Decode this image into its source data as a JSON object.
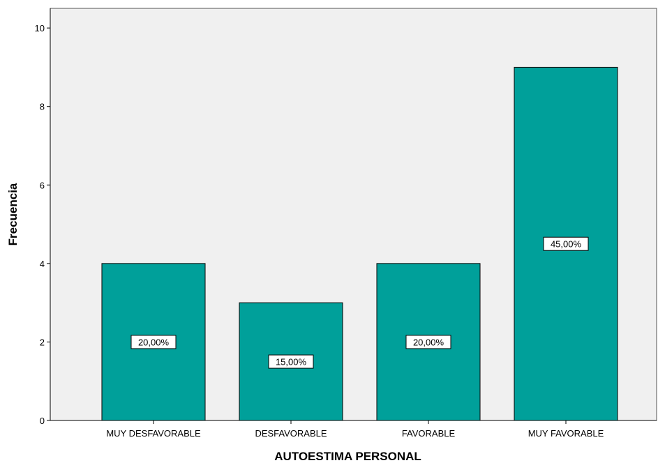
{
  "chart_data": {
    "type": "bar",
    "categories": [
      "MUY DESFAVORABLE",
      "DESFAVORABLE",
      "FAVORABLE",
      "MUY FAVORABLE"
    ],
    "values": [
      4,
      3,
      4,
      9
    ],
    "data_labels": [
      "20,00%",
      "15,00%",
      "20,00%",
      "45,00%"
    ],
    "xlabel": "AUTOESTIMA PERSONAL",
    "ylabel": "Frecuencia",
    "ylim": [
      0,
      10.5
    ],
    "yticks": [
      0,
      2,
      4,
      6,
      8,
      10
    ],
    "grid": false,
    "colors": {
      "bar": "#00a09a",
      "plot_background": "#f0f0f0",
      "label_box": "#ffffff"
    }
  }
}
